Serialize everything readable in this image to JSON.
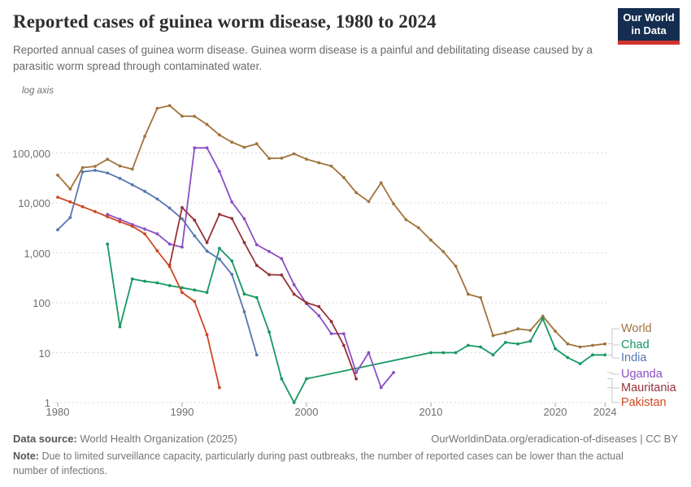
{
  "header": {
    "title": "Reported cases of guinea worm disease, 1980 to 2024",
    "subtitle": "Reported annual cases of guinea worm disease. Guinea worm disease is a painful and debilitating disease caused by a parasitic worm spread through contaminated water.",
    "logo": {
      "line1": "Our World",
      "line2": "in Data"
    }
  },
  "chart": {
    "log_axis_label": "log axis",
    "y_ticks": [
      {
        "value": 100000,
        "label": "100,000"
      },
      {
        "value": 10000,
        "label": "10,000"
      },
      {
        "value": 1000,
        "label": "1,000"
      },
      {
        "value": 100,
        "label": "100"
      },
      {
        "value": 10,
        "label": "10"
      },
      {
        "value": 1,
        "label": "1"
      }
    ],
    "x_ticks": [
      {
        "year": 1980,
        "label": "1980"
      },
      {
        "year": 1990,
        "label": "1990"
      },
      {
        "year": 2000,
        "label": "2000"
      },
      {
        "year": 2010,
        "label": "2010"
      },
      {
        "year": 2020,
        "label": "2020"
      },
      {
        "year": 2024,
        "label": "2024"
      }
    ],
    "grid_color": "#dadada",
    "connector_color": "#c8c8c8"
  },
  "chart_data": {
    "type": "line",
    "log_scale": true,
    "title": "Reported cases of guinea worm disease, 1980 to 2024",
    "xlabel": "",
    "ylabel": "log axis",
    "x_range": [
      1980,
      2024
    ],
    "ylim": [
      1,
      1000000
    ],
    "grid": true,
    "legend_position": "right",
    "series": [
      {
        "name": "World",
        "color": "#A1733C",
        "points": [
          [
            1980,
            36000
          ],
          [
            1981,
            19000
          ],
          [
            1982,
            51000
          ],
          [
            1983,
            54000
          ],
          [
            1984,
            75000
          ],
          [
            1985,
            55000
          ],
          [
            1986,
            47485
          ],
          [
            1987,
            216484
          ],
          [
            1988,
            783392
          ],
          [
            1989,
            892055
          ],
          [
            1990,
            546827
          ],
          [
            1991,
            543585
          ],
          [
            1992,
            374202
          ],
          [
            1993,
            229773
          ],
          [
            1994,
            164973
          ],
          [
            1995,
            129852
          ],
          [
            1996,
            152814
          ],
          [
            1997,
            77863
          ],
          [
            1998,
            78557
          ],
          [
            1999,
            96293
          ],
          [
            2000,
            75223
          ],
          [
            2001,
            63718
          ],
          [
            2002,
            54638
          ],
          [
            2003,
            32193
          ],
          [
            2004,
            16026
          ],
          [
            2005,
            10674
          ],
          [
            2006,
            25217
          ],
          [
            2007,
            9585
          ],
          [
            2008,
            4619
          ],
          [
            2009,
            3190
          ],
          [
            2010,
            1797
          ],
          [
            2011,
            1058
          ],
          [
            2012,
            542
          ],
          [
            2013,
            148
          ],
          [
            2014,
            126
          ],
          [
            2015,
            22
          ],
          [
            2016,
            25
          ],
          [
            2017,
            30
          ],
          [
            2018,
            28
          ],
          [
            2019,
            54
          ],
          [
            2020,
            27
          ],
          [
            2021,
            15
          ],
          [
            2022,
            13
          ],
          [
            2023,
            14
          ],
          [
            2024,
            15
          ]
        ]
      },
      {
        "name": "Chad",
        "color": "#169862",
        "points": [
          [
            1984,
            1500
          ],
          [
            1985,
            33
          ],
          [
            1986,
            300
          ],
          [
            1987,
            270
          ],
          [
            1988,
            250
          ],
          [
            1989,
            220
          ],
          [
            1990,
            200
          ],
          [
            1991,
            180
          ],
          [
            1992,
            160
          ],
          [
            1993,
            1231
          ],
          [
            1994,
            690
          ],
          [
            1995,
            149
          ],
          [
            1996,
            127
          ],
          [
            1997,
            26
          ],
          [
            1998,
            3
          ],
          [
            1999,
            1
          ],
          [
            2000,
            3
          ],
          [
            2010,
            10
          ],
          [
            2011,
            10
          ],
          [
            2012,
            10
          ],
          [
            2013,
            14
          ],
          [
            2014,
            13
          ],
          [
            2015,
            9
          ],
          [
            2016,
            16
          ],
          [
            2017,
            15
          ],
          [
            2018,
            17
          ],
          [
            2019,
            48
          ],
          [
            2020,
            12
          ],
          [
            2021,
            8
          ],
          [
            2022,
            6
          ],
          [
            2023,
            9
          ],
          [
            2024,
            9
          ]
        ]
      },
      {
        "name": "India",
        "color": "#5577B1",
        "points": [
          [
            1980,
            2900
          ],
          [
            1981,
            5100
          ],
          [
            1982,
            42000
          ],
          [
            1983,
            44819
          ],
          [
            1984,
            39792
          ],
          [
            1985,
            30950
          ],
          [
            1986,
            23070
          ],
          [
            1987,
            17031
          ],
          [
            1988,
            12023
          ],
          [
            1989,
            7881
          ],
          [
            1990,
            4798
          ],
          [
            1991,
            2185
          ],
          [
            1992,
            1081
          ],
          [
            1993,
            750
          ],
          [
            1994,
            371
          ],
          [
            1995,
            66
          ],
          [
            1996,
            9
          ]
        ]
      },
      {
        "name": "Uganda",
        "color": "#8B4FC5",
        "points": [
          [
            1984,
            5900
          ],
          [
            1985,
            4700
          ],
          [
            1986,
            3700
          ],
          [
            1987,
            3000
          ],
          [
            1988,
            2400
          ],
          [
            1989,
            1500
          ],
          [
            1990,
            1300
          ],
          [
            1991,
            126369
          ],
          [
            1992,
            126369
          ],
          [
            1993,
            42852
          ],
          [
            1994,
            10425
          ],
          [
            1995,
            4810
          ],
          [
            1996,
            1455
          ],
          [
            1997,
            1061
          ],
          [
            1998,
            767
          ],
          [
            1999,
            230
          ],
          [
            2000,
            96
          ],
          [
            2001,
            55
          ],
          [
            2002,
            24
          ],
          [
            2003,
            24
          ],
          [
            2004,
            4
          ],
          [
            2005,
            10
          ],
          [
            2006,
            2
          ],
          [
            2007,
            4
          ]
        ]
      },
      {
        "name": "Mauritania",
        "color": "#963139",
        "points": [
          [
            1989,
            564
          ],
          [
            1990,
            8036
          ],
          [
            1991,
            4500
          ],
          [
            1992,
            1600
          ],
          [
            1993,
            5900
          ],
          [
            1994,
            4900
          ],
          [
            1995,
            1600
          ],
          [
            1996,
            560
          ],
          [
            1997,
            365
          ],
          [
            1998,
            360
          ],
          [
            1999,
            148
          ],
          [
            2000,
            100
          ],
          [
            2001,
            84
          ],
          [
            2002,
            42
          ],
          [
            2003,
            14
          ],
          [
            2004,
            3
          ]
        ]
      },
      {
        "name": "Pakistan",
        "color": "#CE471F",
        "points": [
          [
            1980,
            13000
          ],
          [
            1981,
            10500
          ],
          [
            1982,
            8400
          ],
          [
            1983,
            6700
          ],
          [
            1984,
            5300
          ],
          [
            1985,
            4200
          ],
          [
            1986,
            3400
          ],
          [
            1987,
            2400
          ],
          [
            1988,
            1100
          ],
          [
            1989,
            534
          ],
          [
            1990,
            160
          ],
          [
            1991,
            106
          ],
          [
            1992,
            23
          ],
          [
            1993,
            2
          ]
        ]
      }
    ]
  },
  "footer": {
    "source_label": "Data source:",
    "source": "World Health Organization (2025)",
    "link": "OurWorldinData.org/eradication-of-diseases | CC BY",
    "note_label": "Note:",
    "note": "Due to limited surveillance capacity, particularly during past outbreaks, the number of reported cases can be lower than the actual number of infections."
  }
}
